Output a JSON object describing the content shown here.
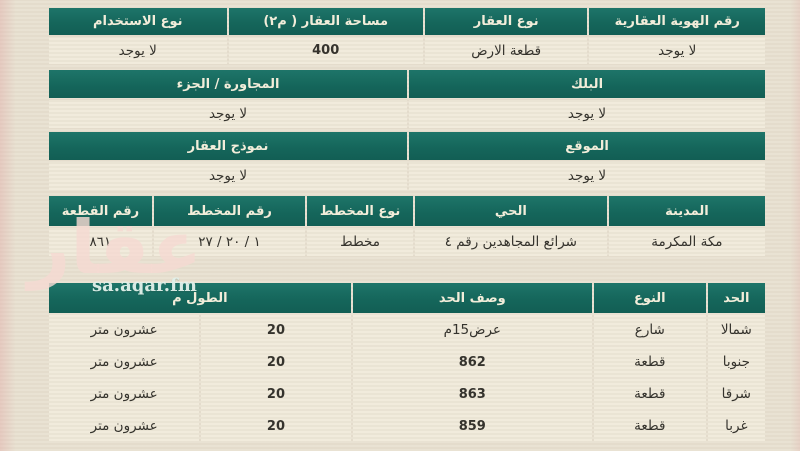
{
  "colors": {
    "header_green": "#15665b",
    "page_beige": "#e8e1d1",
    "cell_cream": "#eee8d8",
    "header_text": "#f2edda",
    "value_text": "#35332d",
    "watermark_pink": "#f5d9d2"
  },
  "watermark": {
    "arabic": "عقار",
    "site": "sa.aqar.fm"
  },
  "upper": {
    "sec1": {
      "headers": [
        "رقم الهوية العقارية",
        "نوع العقار",
        "مساحة العقار ( م٢)",
        "نوع الاستخدام"
      ],
      "values": [
        "لا يوجد",
        "قطعة الارض",
        "400",
        "لا يوجد"
      ]
    },
    "sec2": {
      "headers": [
        "البلك",
        "المجاورة / الجزء"
      ],
      "values": [
        "لا يوجد",
        "لا يوجد"
      ]
    },
    "sec3": {
      "headers": [
        "الموقع",
        "نموذج العقار"
      ],
      "values": [
        "لا يوجد",
        "لا يوجد"
      ]
    },
    "sec4": {
      "headers": [
        "المدينة",
        "الحي",
        "نوع المخطط",
        "رقم المخطط",
        "رقم القطعة"
      ],
      "values": [
        "مكة المكرمة",
        "شرائع المجاهدين رقم ٤",
        "مخطط",
        "١ / ٢٠ / ٢٧",
        "٨٦١"
      ]
    }
  },
  "lower": {
    "headers": [
      "الحد",
      "النوع",
      "وصف الحد",
      "الطول م"
    ],
    "rows": [
      {
        "boundary": "شمالا",
        "type": "شارع",
        "desc": "عرض15م",
        "length_num": "20",
        "length_text": "عشرون متر"
      },
      {
        "boundary": "جنوبا",
        "type": "قطعة",
        "desc": "862",
        "length_num": "20",
        "length_text": "عشرون متر"
      },
      {
        "boundary": "شرقا",
        "type": "قطعة",
        "desc": "863",
        "length_num": "20",
        "length_text": "عشرون متر"
      },
      {
        "boundary": "غربا",
        "type": "قطعة",
        "desc": "859",
        "length_num": "20",
        "length_text": "عشرون متر"
      }
    ]
  }
}
